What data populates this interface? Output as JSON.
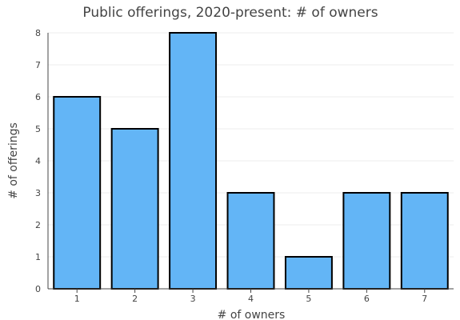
{
  "chart_data": {
    "type": "bar",
    "title": "Public offerings, 2020-present: # of owners",
    "xlabel": "# of owners",
    "ylabel": "# of offerings",
    "categories": [
      "1",
      "2",
      "3",
      "4",
      "5",
      "6",
      "7"
    ],
    "values": [
      6,
      5,
      8,
      3,
      1,
      3,
      3
    ],
    "yticks": [
      "0",
      "1",
      "2",
      "3",
      "4",
      "5",
      "6",
      "7",
      "8"
    ],
    "ylim": [
      0,
      8
    ],
    "grid": true,
    "legend": "none",
    "colors": {
      "bar_fill": "#63b5f6",
      "bar_stroke": "#000000",
      "grid": "#eeeeee",
      "axis": "#444444",
      "text": "#444444"
    }
  }
}
